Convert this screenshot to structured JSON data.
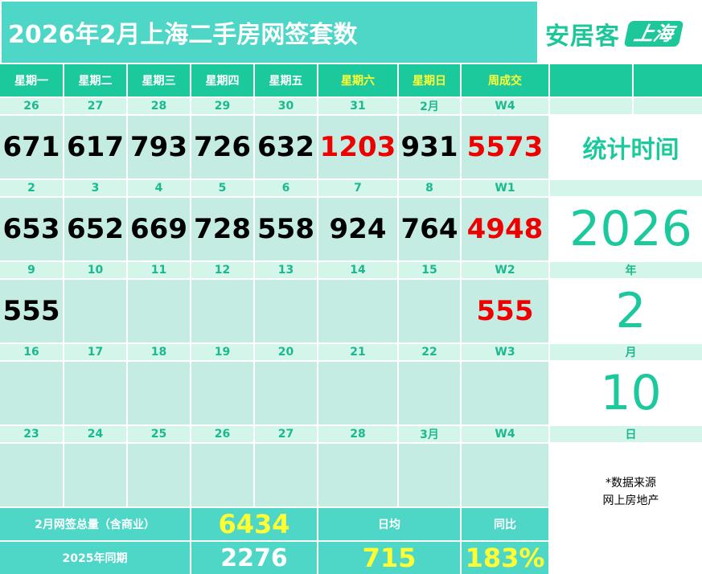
{
  "title": "2026年2月上海二手房网签套数",
  "logo": {
    "text": "安居客",
    "badge": "上海"
  },
  "headers": [
    "星期一",
    "星期二",
    "星期三",
    "星期四",
    "星期五",
    "星期六",
    "星期日",
    "周成交"
  ],
  "weeks": [
    {
      "dates": [
        "26",
        "27",
        "28",
        "29",
        "30",
        "31",
        "2月",
        "W4"
      ],
      "values": [
        "671",
        "617",
        "793",
        "726",
        "632",
        "1203",
        "931",
        "5573"
      ]
    },
    {
      "dates": [
        "2",
        "3",
        "4",
        "5",
        "6",
        "7",
        "8",
        "W1"
      ],
      "values": [
        "653",
        "652",
        "669",
        "728",
        "558",
        "924",
        "764",
        "4948"
      ]
    },
    {
      "dates": [
        "9",
        "10",
        "11",
        "12",
        "13",
        "14",
        "15",
        "W2"
      ],
      "values": [
        "555",
        "",
        "",
        "",
        "",
        "",
        "",
        "555"
      ]
    },
    {
      "dates": [
        "16",
        "17",
        "18",
        "19",
        "20",
        "21",
        "22",
        "W3"
      ],
      "values": [
        "",
        "",
        "",
        "",
        "",
        "",
        "",
        ""
      ]
    },
    {
      "dates": [
        "23",
        "24",
        "25",
        "26",
        "27",
        "28",
        "3月",
        "W4"
      ],
      "values": [
        "",
        "",
        "",
        "",
        "",
        "",
        "",
        ""
      ]
    }
  ],
  "side": {
    "stat_label": "统计时间",
    "year": "2026",
    "year_unit": "年",
    "month": "2",
    "month_unit": "月",
    "day": "10",
    "day_unit": "日",
    "source_line1": "*数据来源",
    "source_line2": "网上房地产"
  },
  "footer": {
    "total_label": "2月网签总量（含商业）",
    "total_value": "6434",
    "avg_label": "日均",
    "yoy_label": "同比",
    "last_year_label": "2025年同期",
    "last_year_value": "2276",
    "avg_value": "715",
    "yoy_value": "183%"
  },
  "colors": {
    "teal": "#4ed6c7",
    "green": "#1cc99c",
    "cell": "#c5ece3",
    "red": "#ee0000",
    "yellow": "#ffff33"
  }
}
